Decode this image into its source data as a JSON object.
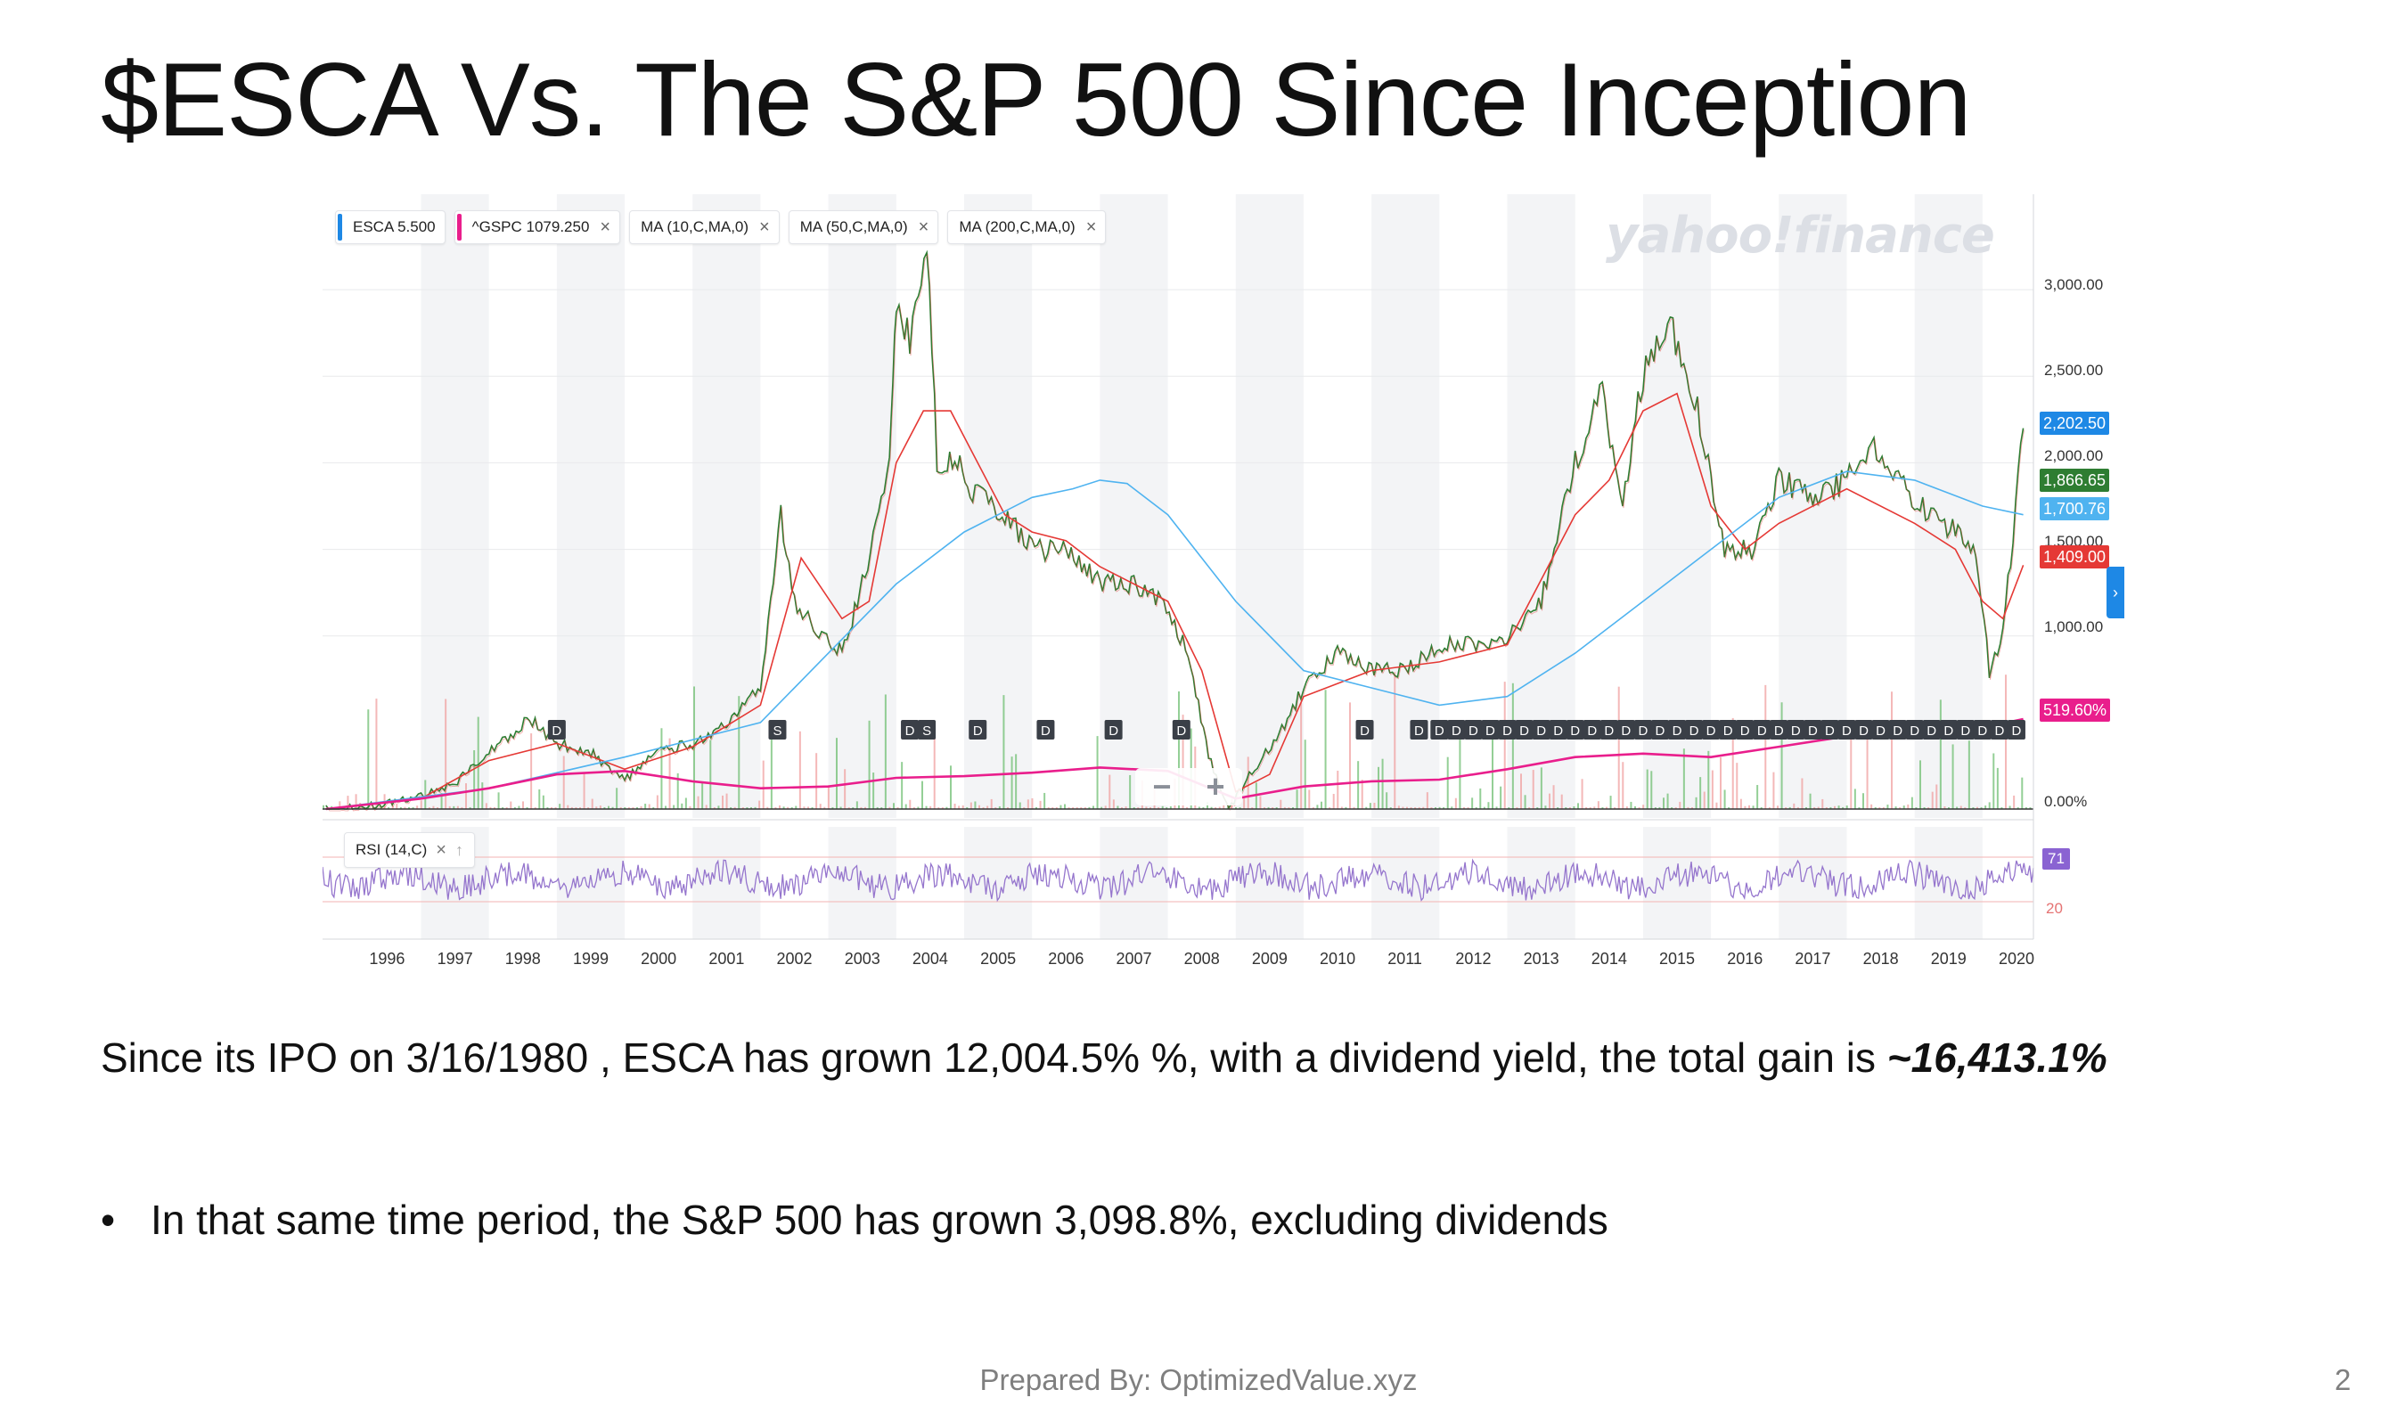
{
  "slide": {
    "title": "$ESCA Vs. The S&P 500 Since Inception",
    "body_prefix": "Since its IPO on 3/16/1980 , ESCA has grown 12,004.5% %, with a dividend yield, the total gain is ",
    "body_emphasis": "~16,413.1%",
    "bullet": "In that same time period, the S&P 500 has grown 3,098.8%, excluding dividends",
    "footer": "Prepared By: OptimizedValue.xyz",
    "page_number": "2"
  },
  "legend": [
    {
      "label": "ESCA  5.500",
      "color": "#1e88e5"
    },
    {
      "label": "^GSPC  1079.250",
      "color": "#e91e8c"
    },
    {
      "label": "MA (10,C,MA,0)",
      "color": ""
    },
    {
      "label": "MA (50,C,MA,0)",
      "color": ""
    },
    {
      "label": "MA (200,C,MA,0)",
      "color": ""
    }
  ],
  "legend_close": "×",
  "watermark": "yahoo!finance",
  "rsi": {
    "label": "RSI (14,C)",
    "close": "×",
    "arrow": "↑",
    "current": "71",
    "low_line": "20"
  },
  "price_tags": [
    {
      "label": "2,202.50",
      "value": 2202.5,
      "color": "#1e88e5"
    },
    {
      "label": "1,866.65",
      "value": 1866.65,
      "color": "#2e7d32"
    },
    {
      "label": "1,700.76",
      "value": 1700.76,
      "color": "#4fb3f0"
    },
    {
      "label": "1,409.00",
      "value": 1409.0,
      "color": "#e53935"
    },
    {
      "label": "519.60%",
      "value": 519.6,
      "color": "#e91e8c"
    }
  ],
  "zoom": {
    "minus": "−",
    "plus": "+"
  },
  "expand_icon": "chevron-right-icon",
  "chart_data": {
    "type": "line",
    "title": "",
    "y_tick_labels": [
      "3,000.00",
      "2,500.00",
      "2,000.00",
      "1,500.00",
      "1,000.00",
      "0.00%"
    ],
    "ylim": [
      0,
      3500
    ],
    "x_tick_labels": [
      "1996",
      "1997",
      "1998",
      "1999",
      "2000",
      "2001",
      "2002",
      "2003",
      "2004",
      "2005",
      "2006",
      "2007",
      "2008",
      "2009",
      "2010",
      "2011",
      "2012",
      "2013",
      "2014",
      "2015",
      "2016",
      "2017",
      "2018",
      "2019",
      "2020"
    ],
    "grid": "alternating vertical year bands",
    "series": [
      {
        "name": "ESCA",
        "color": "#2e7d32",
        "x": [
          1995.6,
          1996.5,
          1997.0,
          1997.5,
          1998.0,
          1998.6,
          1999.0,
          1999.5,
          2000.0,
          2000.5,
          2001.0,
          2001.5,
          2002.0,
          2002.3,
          2002.5,
          2002.9,
          2003.2,
          2003.5,
          2003.9,
          2004.0,
          2004.2,
          2004.45,
          2004.6,
          2004.9,
          2005.2,
          2005.6,
          2006.0,
          2006.5,
          2007.0,
          2007.5,
          2007.9,
          2008.3,
          2008.6,
          2008.9,
          2009.2,
          2009.6,
          2010.0,
          2010.5,
          2011.0,
          2011.5,
          2012.0,
          2012.5,
          2013.0,
          2013.5,
          2014.0,
          2014.4,
          2014.7,
          2015.0,
          2015.4,
          2015.8,
          2016.2,
          2016.6,
          2017.0,
          2017.5,
          2018.0,
          2018.4,
          2018.8,
          2019.2,
          2019.6,
          2019.9,
          2020.1,
          2020.3,
          2020.6
        ],
        "y": [
          0,
          30,
          80,
          150,
          330,
          520,
          380,
          330,
          170,
          330,
          380,
          480,
          700,
          1700,
          1200,
          1000,
          900,
          1300,
          2000,
          2900,
          2700,
          3300,
          2000,
          2000,
          1800,
          1700,
          1500,
          1500,
          1300,
          1300,
          1200,
          900,
          300,
          0,
          200,
          400,
          700,
          900,
          800,
          800,
          950,
          950,
          1000,
          1200,
          2000,
          2400,
          1800,
          2500,
          2800,
          2300,
          1500,
          1500,
          1900,
          1800,
          1900,
          2100,
          1900,
          1700,
          1600,
          1500,
          800,
          1000,
          2200
        ]
      },
      {
        "name": "MA (10,C,MA,0)",
        "color": "#e53935",
        "x": [
          1995.6,
          1997.0,
          1998.0,
          1999.0,
          2000.0,
          2001.0,
          2002.0,
          2002.6,
          2003.2,
          2003.6,
          2004.0,
          2004.4,
          2004.8,
          2005.2,
          2005.6,
          2006.0,
          2006.5,
          2007.0,
          2007.5,
          2008.0,
          2008.5,
          2009.0,
          2009.5,
          2010.0,
          2011.0,
          2012.0,
          2013.0,
          2014.0,
          2014.5,
          2015.0,
          2015.5,
          2016.0,
          2016.5,
          2017.0,
          2018.0,
          2019.0,
          2019.6,
          2020.0,
          2020.3,
          2020.6
        ],
        "y": [
          0,
          60,
          280,
          380,
          230,
          360,
          600,
          1450,
          1100,
          1200,
          2000,
          2300,
          2300,
          2000,
          1700,
          1600,
          1550,
          1400,
          1300,
          1200,
          800,
          100,
          200,
          650,
          800,
          850,
          950,
          1700,
          1900,
          2300,
          2400,
          1750,
          1500,
          1650,
          1850,
          1650,
          1500,
          1200,
          1100,
          1409
        ]
      },
      {
        "name": "MA (50,C,MA,0)",
        "color": "#4fb3f0",
        "x": [
          1995.6,
          1998.0,
          2000.0,
          2002.0,
          2003.0,
          2004.0,
          2005.0,
          2006.0,
          2006.6,
          2007.0,
          2007.4,
          2008.0,
          2009.0,
          2010.0,
          2011.0,
          2012.0,
          2013.0,
          2014.0,
          2015.0,
          2016.0,
          2017.0,
          2018.0,
          2019.0,
          2020.0,
          2020.6
        ],
        "y": [
          0,
          120,
          300,
          500,
          900,
          1300,
          1600,
          1800,
          1850,
          1900,
          1880,
          1700,
          1200,
          800,
          700,
          600,
          650,
          900,
          1200,
          1500,
          1800,
          1950,
          1900,
          1750,
          1700
        ]
      },
      {
        "name": "^GSPC",
        "color": "#e91e8c",
        "x": [
          1995.6,
          1997.0,
          1998.0,
          1999.0,
          2000.0,
          2001.0,
          2002.0,
          2003.0,
          2004.0,
          2005.0,
          2006.0,
          2007.0,
          2008.0,
          2009.0,
          2010.0,
          2011.0,
          2012.0,
          2013.0,
          2014.0,
          2015.0,
          2016.0,
          2017.0,
          2018.0,
          2019.0,
          2020.0,
          2020.6
        ],
        "y": [
          0,
          60,
          120,
          200,
          220,
          160,
          120,
          130,
          180,
          190,
          210,
          240,
          220,
          60,
          130,
          160,
          170,
          230,
          300,
          320,
          300,
          360,
          420,
          440,
          470,
          520
        ]
      }
    ],
    "rsi_series": {
      "name": "RSI (14,C)",
      "color": "#9575cd"
    },
    "event_markers": [
      {
        "x": 1999.0,
        "label": "D"
      },
      {
        "x": 2002.25,
        "label": "S"
      },
      {
        "x": 2004.2,
        "label": "D"
      },
      {
        "x": 2004.45,
        "label": "S"
      },
      {
        "x": 2005.2,
        "label": "D"
      },
      {
        "x": 2006.2,
        "label": "D"
      },
      {
        "x": 2007.2,
        "label": "D"
      },
      {
        "x": 2008.2,
        "label": "D"
      },
      {
        "x": 2010.9,
        "label": "D"
      },
      {
        "x": 2011.7,
        "label": "D"
      },
      {
        "x": 2012.0,
        "label": "D"
      },
      {
        "x": 2012.25,
        "label": "D"
      },
      {
        "x": 2012.5,
        "label": "D"
      },
      {
        "x": 2012.75,
        "label": "D"
      },
      {
        "x": 2013.0,
        "label": "D"
      },
      {
        "x": 2013.25,
        "label": "D"
      },
      {
        "x": 2013.5,
        "label": "D"
      },
      {
        "x": 2013.75,
        "label": "D"
      },
      {
        "x": 2014.0,
        "label": "D"
      },
      {
        "x": 2014.25,
        "label": "D"
      },
      {
        "x": 2014.5,
        "label": "D"
      },
      {
        "x": 2014.75,
        "label": "D"
      },
      {
        "x": 2015.0,
        "label": "D"
      },
      {
        "x": 2015.25,
        "label": "D"
      },
      {
        "x": 2015.5,
        "label": "D"
      },
      {
        "x": 2015.75,
        "label": "D"
      },
      {
        "x": 2016.0,
        "label": "D"
      },
      {
        "x": 2016.25,
        "label": "D"
      },
      {
        "x": 2016.5,
        "label": "D"
      },
      {
        "x": 2016.75,
        "label": "D"
      },
      {
        "x": 2017.0,
        "label": "D"
      },
      {
        "x": 2017.25,
        "label": "D"
      },
      {
        "x": 2017.5,
        "label": "D"
      },
      {
        "x": 2017.75,
        "label": "D"
      },
      {
        "x": 2018.0,
        "label": "D"
      },
      {
        "x": 2018.25,
        "label": "D"
      },
      {
        "x": 2018.5,
        "label": "D"
      },
      {
        "x": 2018.75,
        "label": "D"
      },
      {
        "x": 2019.0,
        "label": "D"
      },
      {
        "x": 2019.25,
        "label": "D"
      },
      {
        "x": 2019.5,
        "label": "D"
      },
      {
        "x": 2019.75,
        "label": "D"
      },
      {
        "x": 2020.0,
        "label": "D"
      },
      {
        "x": 2020.25,
        "label": "D"
      },
      {
        "x": 2020.5,
        "label": "D"
      }
    ]
  }
}
